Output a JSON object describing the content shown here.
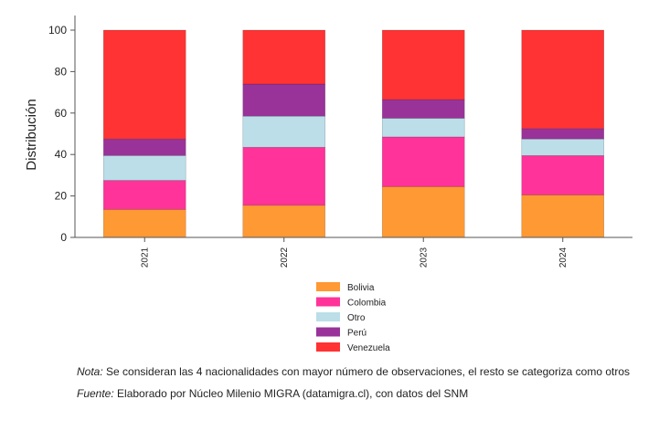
{
  "chart_data": {
    "type": "bar",
    "stacked": true,
    "categories": [
      "2021",
      "2022",
      "2023",
      "2024"
    ],
    "ylabel": "Distribución",
    "ylim": [
      0,
      100
    ],
    "yticks": [
      0,
      20,
      40,
      60,
      80,
      100
    ],
    "grid": false,
    "legend_position": "bottom",
    "series": [
      {
        "name": "Bolivia",
        "color": "#ff9933",
        "values": [
          13.5,
          15.5,
          24.5,
          20.5
        ]
      },
      {
        "name": "Colombia",
        "color": "#ff3399",
        "values": [
          14,
          28,
          24,
          19
        ]
      },
      {
        "name": "Otro",
        "color": "#bbdee8",
        "values": [
          12,
          15,
          9,
          8
        ]
      },
      {
        "name": "Perú",
        "color": "#993399",
        "values": [
          8,
          15.5,
          9,
          5
        ]
      },
      {
        "name": "Venezuela",
        "color": "#ff3333",
        "values": [
          52.5,
          26,
          33.5,
          47.5
        ]
      }
    ]
  },
  "notes": {
    "nota_label": "Nota:",
    "nota_text": " Se consideran las 4 nacionalidades con mayor número de observaciones, el resto se categoriza como otros",
    "fuente_label": "Fuente:",
    "fuente_text": " Elaborado por Núcleo Milenio MIGRA (datamigra.cl), con datos del SNM"
  }
}
